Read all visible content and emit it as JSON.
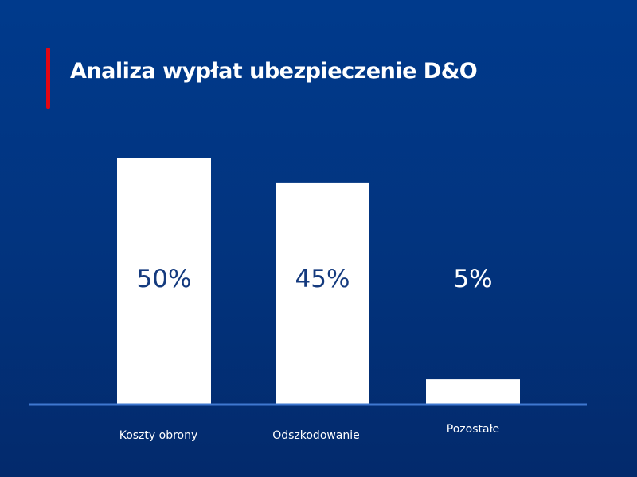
{
  "chart_data": {
    "type": "bar",
    "title": "Analiza wypłat ubezpieczenie D&O",
    "categories": [
      "Koszty obrony",
      "Odszkodowanie",
      "Pozostałe"
    ],
    "values": [
      50,
      45,
      5
    ],
    "value_labels": [
      "50%",
      "45%",
      "5%"
    ],
    "xlabel": "",
    "ylabel": "",
    "ylim": [
      0,
      50
    ],
    "grid": false,
    "colors": {
      "bar": "#ffffff",
      "label_on_bar": "#143a7e",
      "label_off_bar": "#ffffff",
      "axis": "#3f78d0",
      "accent": "#e30613"
    }
  }
}
